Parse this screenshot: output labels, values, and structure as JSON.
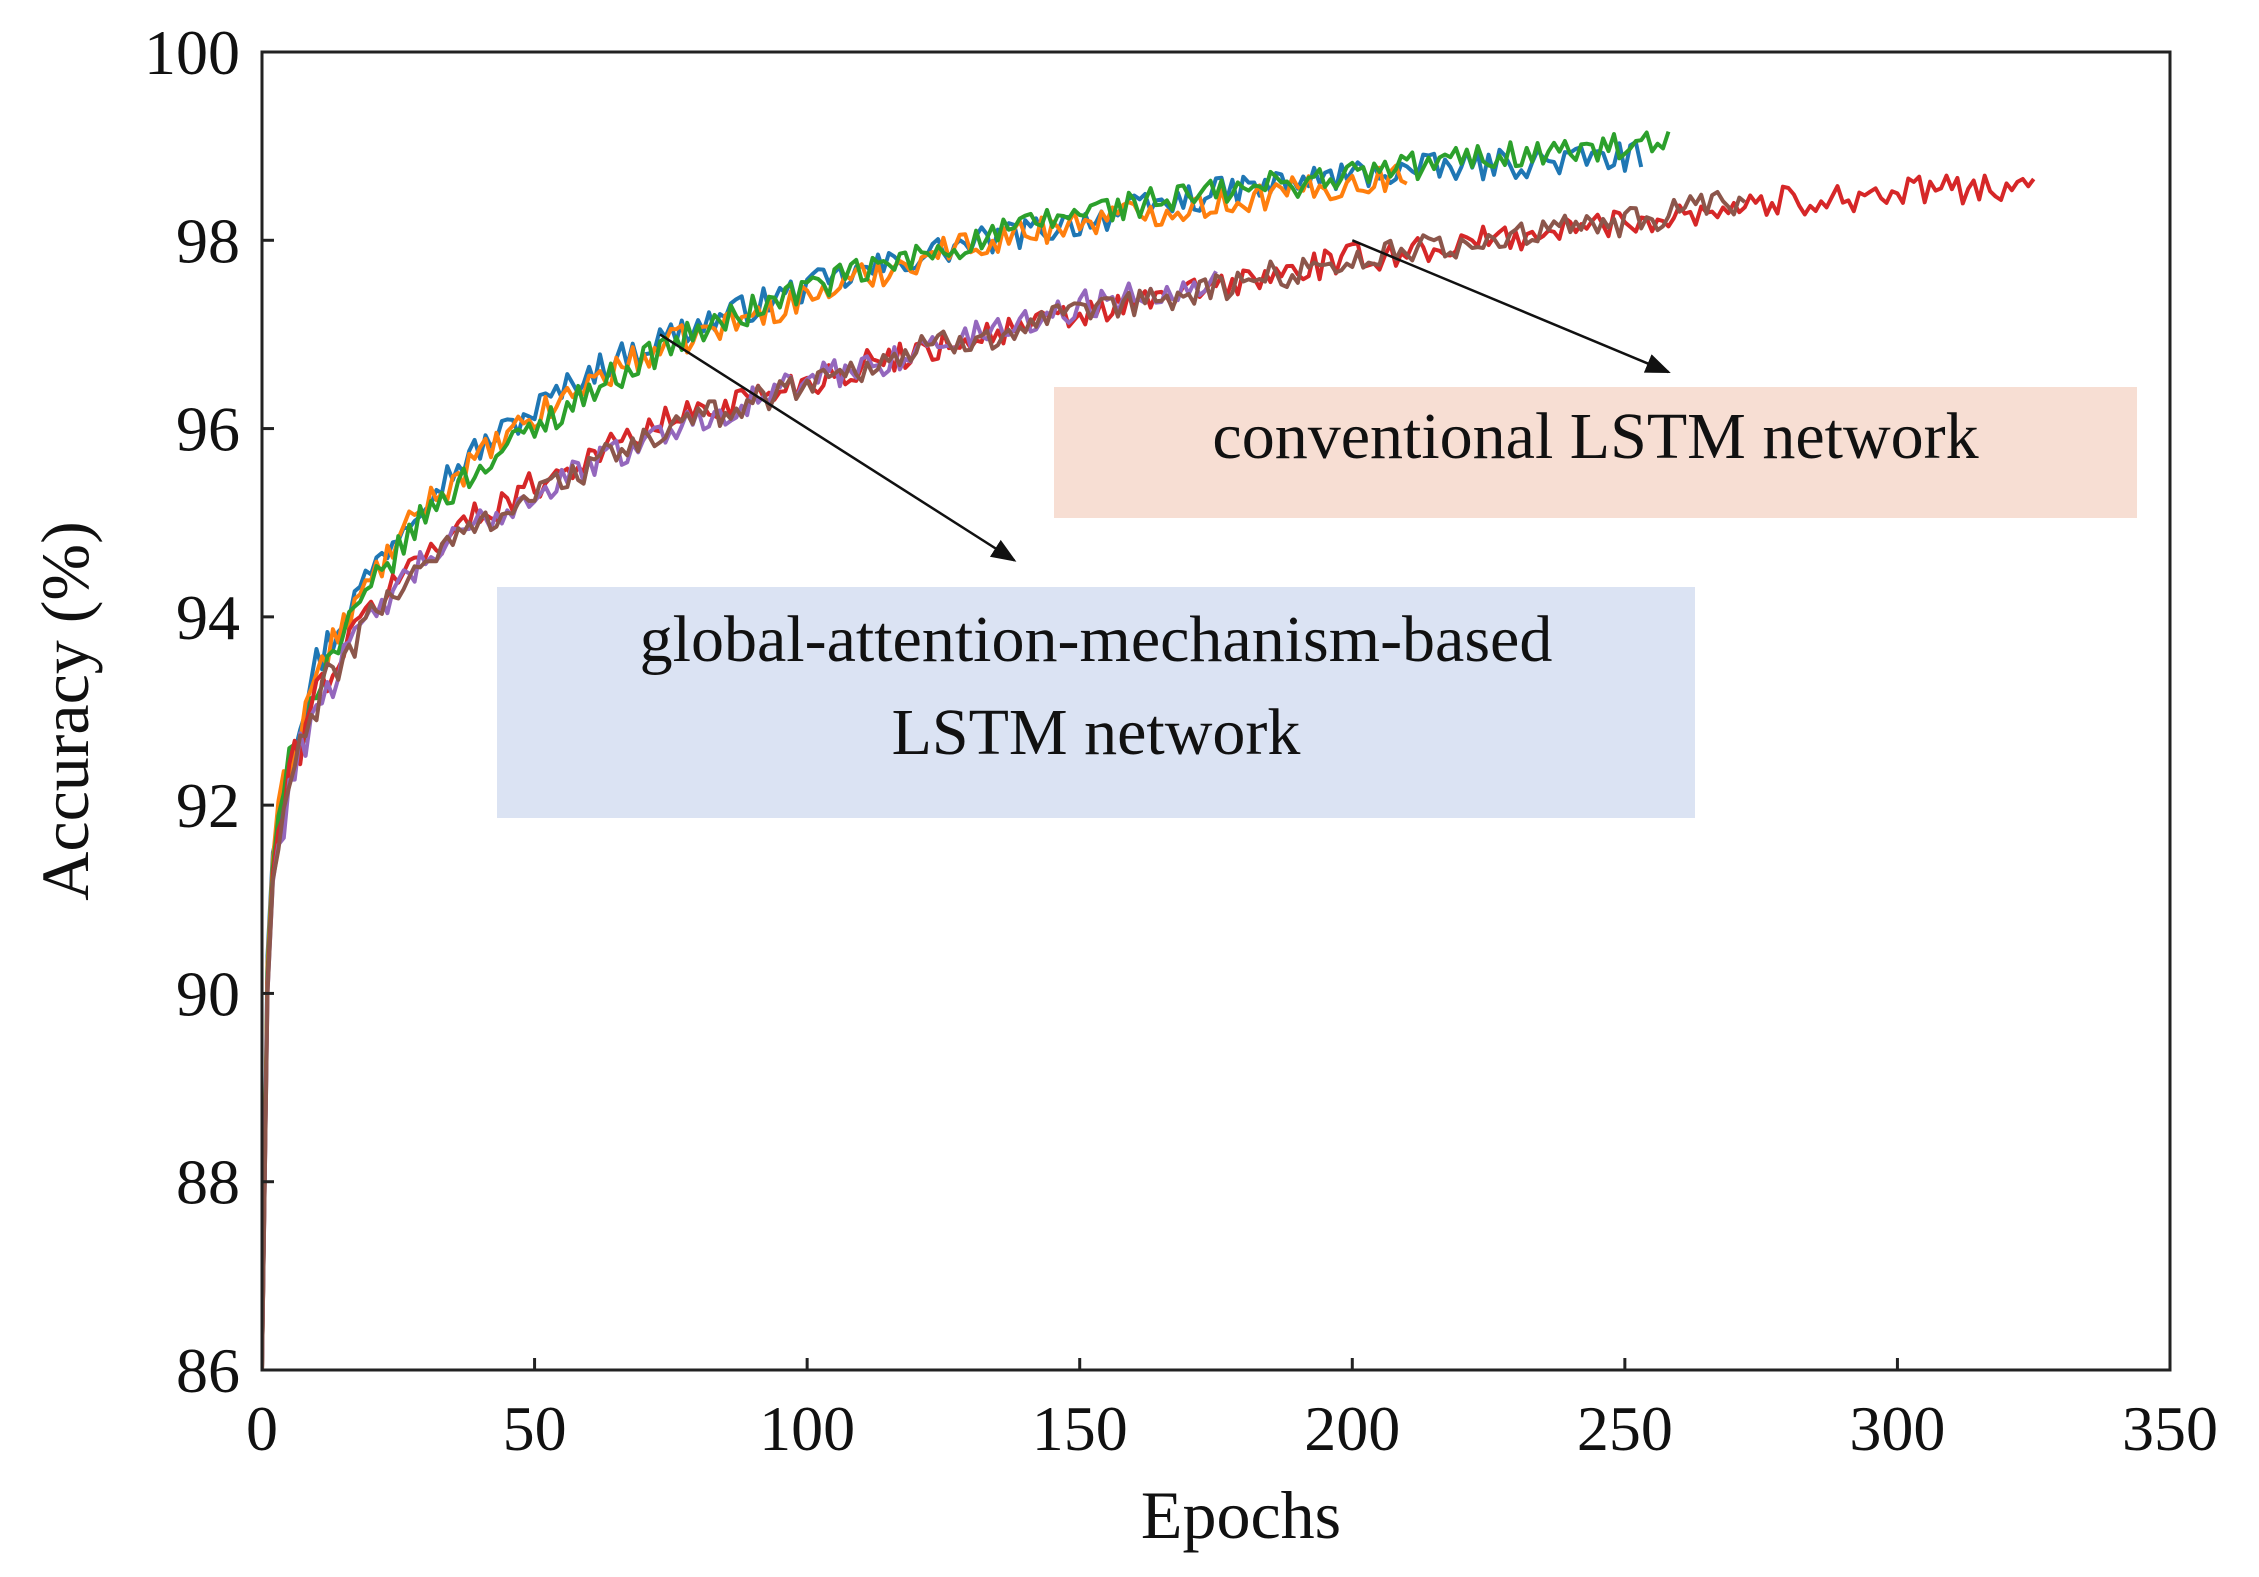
{
  "chart_data": {
    "type": "line",
    "title": "",
    "xlabel": "Epochs",
    "ylabel": "Accuracy (%)",
    "xlim": [
      0,
      350
    ],
    "ylim": [
      86,
      100
    ],
    "xticks": [
      0,
      50,
      100,
      150,
      200,
      250,
      300,
      350
    ],
    "yticks": [
      86,
      88,
      90,
      92,
      94,
      96,
      98,
      100
    ],
    "grid": false,
    "series": [
      {
        "name": "global-attention-mechanism-based LSTM network (run 1)",
        "group": "global-attention",
        "color": "#1f77b4",
        "epochs": 253,
        "x": [
          0,
          1,
          2,
          5,
          10,
          20,
          30,
          40,
          50,
          60,
          75,
          100,
          125,
          150,
          175,
          200,
          225,
          253
        ],
        "y": [
          86.0,
          90.4,
          91.6,
          92.6,
          93.5,
          94.5,
          95.3,
          95.8,
          96.2,
          96.6,
          97.0,
          97.5,
          97.9,
          98.2,
          98.5,
          98.7,
          98.8,
          98.9
        ]
      },
      {
        "name": "global-attention-mechanism-based LSTM network (run 2)",
        "group": "global-attention",
        "color": "#ff7f0e",
        "epochs": 210,
        "x": [
          0,
          1,
          2,
          5,
          10,
          20,
          30,
          40,
          50,
          60,
          75,
          100,
          125,
          150,
          175,
          200,
          210
        ],
        "y": [
          86.0,
          90.3,
          91.5,
          92.5,
          93.4,
          94.4,
          95.2,
          95.7,
          96.1,
          96.5,
          96.9,
          97.4,
          97.9,
          98.2,
          98.4,
          98.6,
          98.7
        ]
      },
      {
        "name": "global-attention-mechanism-based LSTM network (run 3)",
        "group": "global-attention",
        "color": "#2ca02c",
        "epochs": 258,
        "x": [
          0,
          1,
          2,
          5,
          10,
          20,
          30,
          40,
          50,
          60,
          75,
          100,
          125,
          150,
          175,
          200,
          225,
          258
        ],
        "y": [
          86.0,
          90.2,
          91.4,
          92.4,
          93.3,
          94.3,
          95.1,
          95.6,
          96.0,
          96.4,
          96.9,
          97.5,
          97.9,
          98.3,
          98.5,
          98.7,
          98.9,
          99.0
        ]
      },
      {
        "name": "conventional LSTM network (run 1)",
        "group": "conventional",
        "color": "#d62728",
        "epochs": 325,
        "x": [
          0,
          1,
          2,
          5,
          10,
          20,
          30,
          40,
          50,
          60,
          75,
          100,
          125,
          150,
          175,
          200,
          225,
          250,
          275,
          300,
          325
        ],
        "y": [
          86.0,
          90.1,
          91.3,
          92.3,
          93.2,
          94.1,
          94.7,
          95.1,
          95.4,
          95.7,
          96.1,
          96.5,
          96.9,
          97.2,
          97.5,
          97.8,
          98.0,
          98.2,
          98.4,
          98.5,
          98.6
        ]
      },
      {
        "name": "conventional LSTM network (run 2)",
        "group": "conventional",
        "color": "#9467bd",
        "epochs": 175,
        "x": [
          0,
          1,
          2,
          5,
          10,
          20,
          30,
          40,
          50,
          60,
          75,
          100,
          125,
          150,
          175
        ],
        "y": [
          86.0,
          90.0,
          91.2,
          92.2,
          93.1,
          94.0,
          94.6,
          95.0,
          95.3,
          95.6,
          96.0,
          96.5,
          96.9,
          97.3,
          97.6
        ]
      },
      {
        "name": "conventional LSTM network (run 3)",
        "group": "conventional",
        "color": "#8c564b",
        "epochs": 272,
        "x": [
          0,
          1,
          2,
          5,
          10,
          20,
          30,
          40,
          50,
          60,
          75,
          100,
          125,
          150,
          175,
          200,
          225,
          250,
          272
        ],
        "y": [
          86.0,
          90.0,
          91.2,
          92.2,
          93.1,
          94.0,
          94.6,
          95.0,
          95.3,
          95.6,
          96.0,
          96.5,
          96.9,
          97.2,
          97.5,
          97.8,
          98.0,
          98.2,
          98.4
        ]
      }
    ],
    "annotations": [
      {
        "id": "conventional",
        "lines": [
          "conventional LSTM network"
        ],
        "background": "#f7ded3",
        "arrow_from": [
          200,
          98.0
        ],
        "arrow_to": [
          258,
          96.6
        ]
      },
      {
        "id": "global-attention",
        "lines": [
          "global-attention-mechanism-based",
          "LSTM network"
        ],
        "background": "#dbe3f3",
        "arrow_from": [
          73,
          97.0
        ],
        "arrow_to": [
          138,
          94.6
        ]
      }
    ]
  }
}
